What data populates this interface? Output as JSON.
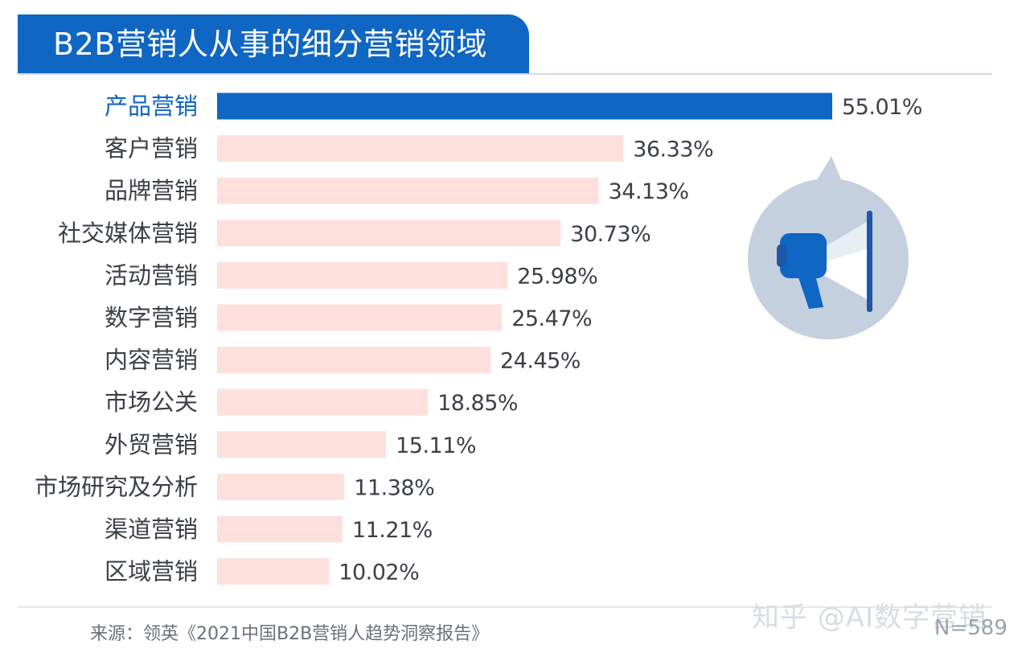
{
  "header": {
    "title": "B2B营销人从事的细分营销领域"
  },
  "chart_data": {
    "type": "bar",
    "orientation": "horizontal",
    "title": "B2B营销人从事的细分营销领域",
    "categories": [
      "产品营销",
      "客户营销",
      "品牌营销",
      "社交媒体营销",
      "活动营销",
      "数字营销",
      "内容营销",
      "市场公关",
      "外贸营销",
      "市场研究及分析",
      "渠道营销",
      "区域营销"
    ],
    "values": [
      55.01,
      36.33,
      34.13,
      30.73,
      25.98,
      25.47,
      24.45,
      18.85,
      15.11,
      11.38,
      11.21,
      10.02
    ],
    "value_labels": [
      "55.01%",
      "36.33%",
      "34.13%",
      "30.73%",
      "25.98%",
      "25.47%",
      "24.45%",
      "18.85%",
      "15.11%",
      "11.38%",
      "11.21%",
      "10.02%"
    ],
    "highlight_index": 0,
    "xlim": [
      0,
      55.01
    ],
    "colors": {
      "highlight_bar": "#0f66c3",
      "bar": "#fde0dc",
      "highlight_label": "#0f66c3",
      "label": "#3c4046"
    }
  },
  "footer": {
    "source": "来源：领英《2021中国B2B营销人趋势洞察报告》",
    "n_label": "N=589",
    "watermark": "知乎 @AI数字营销"
  },
  "decor": {
    "icon": "megaphone-icon"
  }
}
